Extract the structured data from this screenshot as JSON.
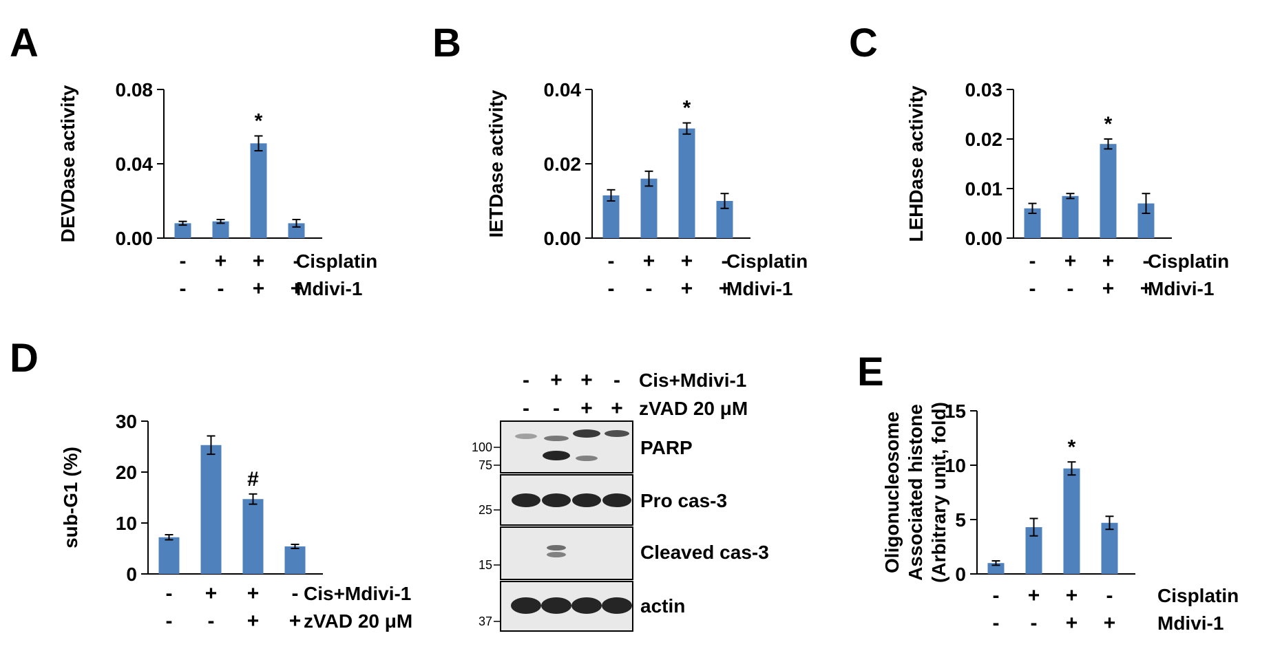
{
  "colors": {
    "bar": "#4f81bd",
    "axis": "#000000",
    "blot_bg": "#e9e9e9",
    "band": "#1a1a1a"
  },
  "panels": {
    "A": {
      "letter": "A"
    },
    "B": {
      "letter": "B"
    },
    "C": {
      "letter": "C"
    },
    "D": {
      "letter": "D"
    },
    "E": {
      "letter": "E"
    }
  },
  "chart_data": [
    {
      "id": "A",
      "type": "bar",
      "ylabel": "DEVDase activity",
      "ylim": [
        0,
        0.08
      ],
      "yticks": [
        "0.00",
        "0.04",
        "0.08"
      ],
      "values": [
        0.008,
        0.009,
        0.051,
        0.008
      ],
      "errors": [
        0.001,
        0.001,
        0.004,
        0.002
      ],
      "marks": [
        "",
        "",
        "*",
        ""
      ],
      "conditions": [
        {
          "name": "Cisplatin",
          "signs": [
            "-",
            "+",
            "+",
            "-"
          ]
        },
        {
          "name": "Mdivi-1",
          "signs": [
            "-",
            "-",
            "+",
            "+"
          ]
        }
      ]
    },
    {
      "id": "B",
      "type": "bar",
      "ylabel": "IETDase activity",
      "ylim": [
        0,
        0.04
      ],
      "yticks": [
        "0.00",
        "0.02",
        "0.04"
      ],
      "values": [
        0.0115,
        0.016,
        0.0295,
        0.01
      ],
      "errors": [
        0.0015,
        0.002,
        0.0015,
        0.002
      ],
      "marks": [
        "",
        "",
        "*",
        ""
      ],
      "conditions": [
        {
          "name": "Cisplatin",
          "signs": [
            "-",
            "+",
            "+",
            "-"
          ]
        },
        {
          "name": "Mdivi-1",
          "signs": [
            "-",
            "-",
            "+",
            "+"
          ]
        }
      ]
    },
    {
      "id": "C",
      "type": "bar",
      "ylabel": "LEHDase activity",
      "ylim": [
        0,
        0.03
      ],
      "yticks": [
        "0.00",
        "0.01",
        "0.02",
        "0.03"
      ],
      "values": [
        0.006,
        0.0085,
        0.019,
        0.007
      ],
      "errors": [
        0.001,
        0.0005,
        0.001,
        0.002
      ],
      "marks": [
        "",
        "",
        "*",
        ""
      ],
      "conditions": [
        {
          "name": "Cisplatin",
          "signs": [
            "-",
            "+",
            "+",
            "-"
          ]
        },
        {
          "name": "Mdivi-1",
          "signs": [
            "-",
            "-",
            "+",
            "+"
          ]
        }
      ]
    },
    {
      "id": "D",
      "type": "bar",
      "ylabel": "sub-G1 (%)",
      "ylim": [
        0,
        30
      ],
      "yticks": [
        "0",
        "10",
        "20",
        "30"
      ],
      "values": [
        7.2,
        25.3,
        14.7,
        5.4
      ],
      "errors": [
        0.5,
        1.8,
        1.0,
        0.4
      ],
      "marks": [
        "",
        "",
        "#",
        ""
      ],
      "conditions": [
        {
          "name": "Cis+Mdivi-1",
          "signs": [
            "-",
            "+",
            "+",
            "-"
          ]
        },
        {
          "name": "zVAD 20 μM",
          "signs": [
            "-",
            "-",
            "+",
            "+"
          ]
        }
      ]
    },
    {
      "id": "E",
      "type": "bar",
      "ylabel": "Oligonucleosome Associated histone (Arbitrary unit, fold)",
      "ylabel_lines": [
        "Oligonucleosome",
        "Associated histone",
        "(Arbitrary unit, fold)"
      ],
      "ylim": [
        0,
        15
      ],
      "yticks": [
        "0",
        "5",
        "10",
        "15"
      ],
      "values": [
        1.0,
        4.3,
        9.7,
        4.7
      ],
      "errors": [
        0.2,
        0.8,
        0.6,
        0.6
      ],
      "marks": [
        "",
        "",
        "*",
        ""
      ],
      "conditions": [
        {
          "name": "Cisplatin",
          "signs": [
            "-",
            "+",
            "+",
            "-"
          ]
        },
        {
          "name": "Mdivi-1",
          "signs": [
            "-",
            "-",
            "+",
            "+"
          ]
        }
      ]
    }
  ],
  "blot": {
    "conditions": [
      {
        "name": "Cis+Mdivi-1",
        "signs": [
          "-",
          "+",
          "+",
          "-"
        ]
      },
      {
        "name": "zVAD 20 μM",
        "signs": [
          "-",
          "-",
          "+",
          "+"
        ]
      }
    ],
    "strips": [
      {
        "label": "PARP",
        "markers": [
          "100",
          "75"
        ]
      },
      {
        "label": "Pro cas-3",
        "markers": [
          "25"
        ]
      },
      {
        "label": "Cleaved cas-3",
        "markers": [
          "15"
        ]
      },
      {
        "label": "actin",
        "markers": [
          "37"
        ]
      }
    ]
  }
}
